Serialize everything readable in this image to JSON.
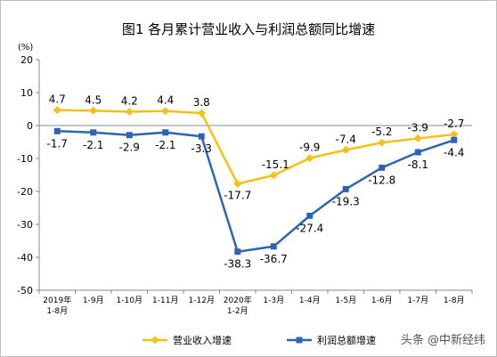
{
  "chart_data": {
    "type": "line",
    "title": "图1 各月累计营业收入与利润总额同比增速",
    "unit": "(%)",
    "categories": [
      [
        "2019年",
        "1-8月"
      ],
      [
        "1-9月"
      ],
      [
        "1-10月"
      ],
      [
        "1-11月"
      ],
      [
        "1-12月"
      ],
      [
        "2020年",
        "1-2月"
      ],
      [
        "1-3月"
      ],
      [
        "1-4月"
      ],
      [
        "1-5月"
      ],
      [
        "1-6月"
      ],
      [
        "1-7月"
      ],
      [
        "1-8月"
      ]
    ],
    "ylim": [
      -50,
      20
    ],
    "yticks": [
      "20",
      "10",
      "0",
      "-10",
      "-20",
      "-30",
      "-40",
      "-50"
    ],
    "series": [
      {
        "name": "营业收入增速",
        "color": "#F5C015",
        "values": [
          4.7,
          4.5,
          4.2,
          4.4,
          3.8,
          -17.7,
          -15.1,
          -9.9,
          -7.4,
          -5.2,
          -3.9,
          -2.7
        ],
        "labels": [
          "4.7",
          "4.5",
          "4.2",
          "4.4",
          "3.8",
          "-17.7",
          "-15.1",
          "-9.9",
          "-7.4",
          "-5.2",
          "-3.9",
          "-2.7"
        ]
      },
      {
        "name": "利润总额增速",
        "color": "#2E64B4",
        "values": [
          -1.7,
          -2.1,
          -2.9,
          -2.1,
          -3.3,
          -38.3,
          -36.7,
          -27.4,
          -19.3,
          -12.8,
          -8.1,
          -4.4
        ],
        "labels": [
          "-1.7",
          "-2.1",
          "-2.9",
          "-2.1",
          "-3.3",
          "-38.3",
          "-36.7",
          "-27.4",
          "-19.3",
          "-12.8",
          "-8.1",
          "-4.4"
        ]
      }
    ],
    "grid": false,
    "legend": "bottom"
  },
  "watermark": "头条 @中新经纬",
  "icon": {
    "watermark": "toutiao-logo-icon"
  }
}
